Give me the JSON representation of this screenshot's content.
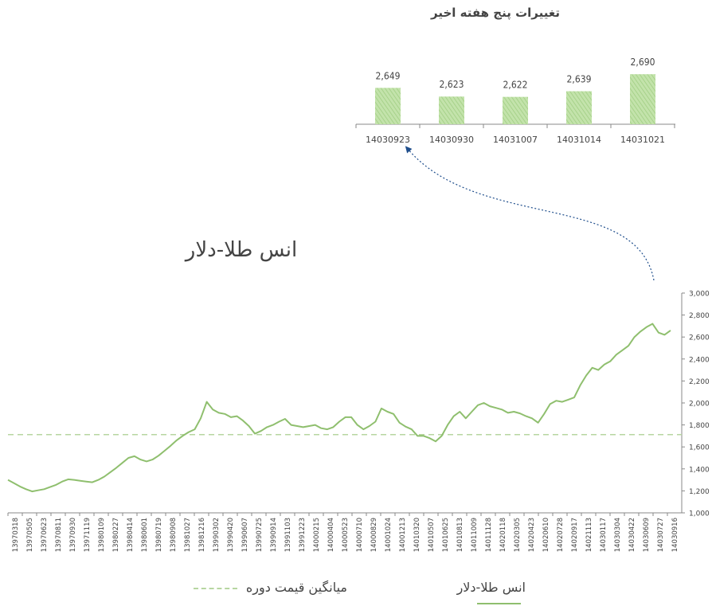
{
  "colors": {
    "line": "#8fbf6e",
    "mean": "#b7d6a1",
    "bar": "#a9d38b",
    "axis": "#777777",
    "arrow": "#1f4e8c"
  },
  "chart_data": [
    {
      "type": "bar",
      "title": "تغییرات پنج هفته اخیر",
      "categories": [
        "14030923",
        "14030930",
        "14031007",
        "14031014",
        "14031021"
      ],
      "values": [
        2649,
        2623,
        2622,
        2639,
        2690
      ],
      "value_labels": [
        "2,649",
        "2,623",
        "2,622",
        "2,639",
        "2,690"
      ]
    },
    {
      "type": "line",
      "title": "انس طلا-دلار",
      "ylim": [
        1000,
        3000
      ],
      "yticks": [
        1000,
        1200,
        1400,
        1600,
        1800,
        2000,
        2200,
        2400,
        2600,
        2800,
        3000
      ],
      "ytick_labels": [
        "1,000",
        "1,200",
        "1,400",
        "1,600",
        "1,800",
        "2,000",
        "2,200",
        "2,400",
        "2,600",
        "2,800",
        "3,000"
      ],
      "x_tick_labels": [
        "13970318",
        "13970505",
        "13970623",
        "13970811",
        "13970930",
        "13971119",
        "13980109",
        "13980227",
        "13980414",
        "13980601",
        "13980719",
        "13980908",
        "13981027",
        "13981216",
        "13990302",
        "13990420",
        "13990607",
        "13990725",
        "13990914",
        "13991103",
        "13991223",
        "14000215",
        "14000404",
        "14000523",
        "14000710",
        "14000829",
        "14001024",
        "14001213",
        "14010320",
        "14010507",
        "14010625",
        "14010813",
        "14011009",
        "14011128",
        "14020118",
        "14020305",
        "14020423",
        "14020610",
        "14020728",
        "14020917",
        "14021113",
        "14030117",
        "14030304",
        "14030422",
        "14030609",
        "14030727",
        "14030916"
      ],
      "mean": 1712,
      "series": [
        {
          "name": "انس طلا-دلار",
          "values": [
            1300,
            1270,
            1240,
            1215,
            1195,
            1205,
            1215,
            1235,
            1255,
            1285,
            1305,
            1300,
            1292,
            1285,
            1278,
            1300,
            1330,
            1370,
            1410,
            1455,
            1500,
            1515,
            1485,
            1468,
            1485,
            1520,
            1565,
            1610,
            1660,
            1700,
            1735,
            1760,
            1860,
            2010,
            1940,
            1910,
            1900,
            1870,
            1880,
            1840,
            1790,
            1720,
            1745,
            1780,
            1800,
            1830,
            1855,
            1800,
            1790,
            1780,
            1790,
            1800,
            1770,
            1760,
            1780,
            1830,
            1870,
            1870,
            1800,
            1760,
            1790,
            1830,
            1950,
            1920,
            1900,
            1820,
            1785,
            1760,
            1700,
            1700,
            1680,
            1650,
            1700,
            1800,
            1880,
            1920,
            1860,
            1920,
            1980,
            2000,
            1970,
            1955,
            1940,
            1910,
            1920,
            1905,
            1880,
            1860,
            1820,
            1900,
            1990,
            2020,
            2010,
            2030,
            2050,
            2160,
            2250,
            2320,
            2300,
            2350,
            2380,
            2440,
            2480,
            2520,
            2600,
            2650,
            2690,
            2720,
            2640,
            2620,
            2660
          ]
        }
      ]
    }
  ],
  "legend": {
    "line_label": "انس طلا-دلار",
    "mean_label": "میانگین قیمت دوره"
  }
}
